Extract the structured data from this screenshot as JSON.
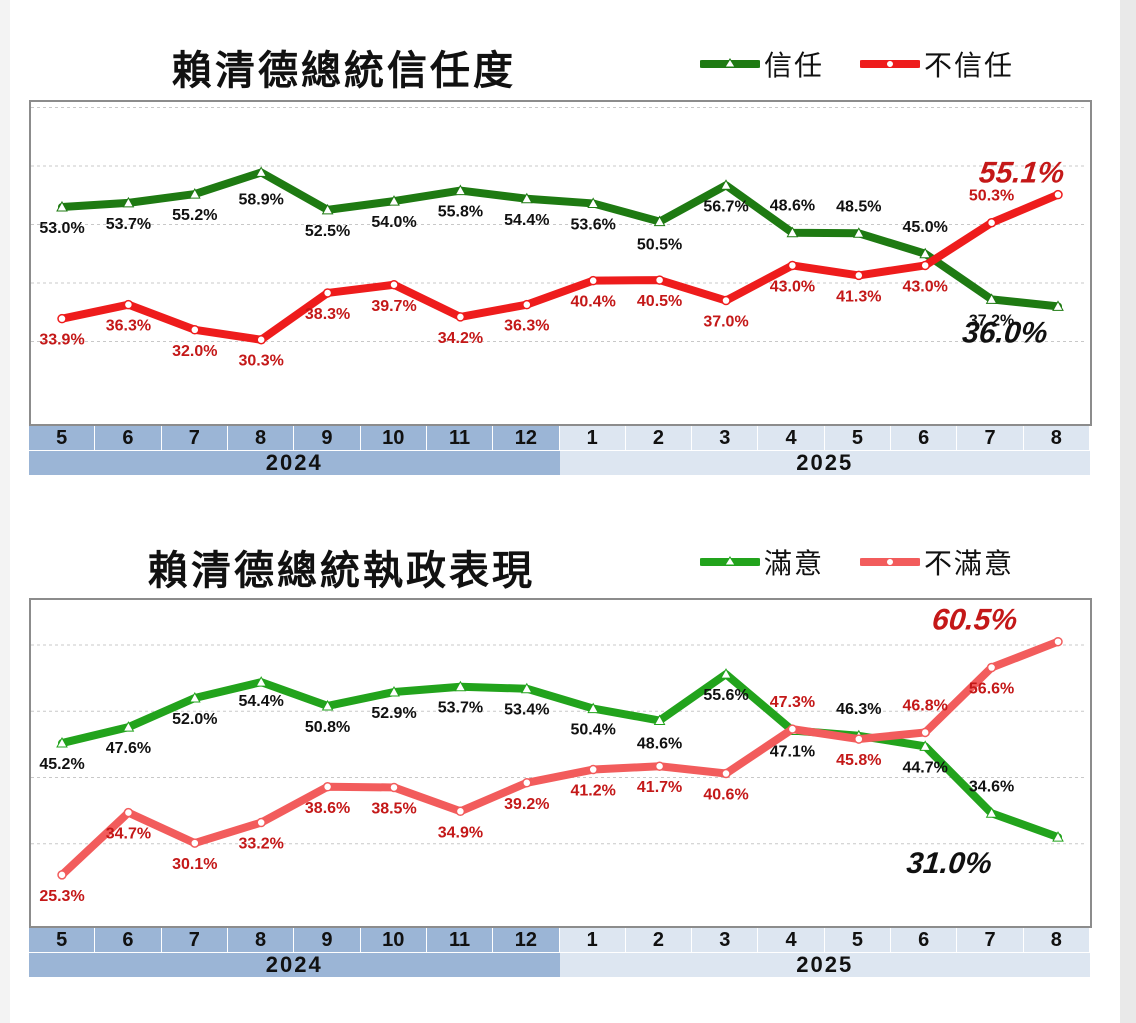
{
  "months": [
    "5",
    "6",
    "7",
    "8",
    "9",
    "10",
    "11",
    "12",
    "1",
    "2",
    "3",
    "4",
    "5",
    "6",
    "7",
    "8"
  ],
  "years": [
    "2024",
    "2025"
  ],
  "chart_data": [
    {
      "type": "line",
      "title": "賴清德總統信任度",
      "categories": [
        "5",
        "6",
        "7",
        "8",
        "9",
        "10",
        "11",
        "12",
        "1",
        "2",
        "3",
        "4",
        "5",
        "6",
        "7",
        "8"
      ],
      "x_groups": [
        {
          "label": "2024",
          "count": 8
        },
        {
          "label": "2025",
          "count": 8
        }
      ],
      "ylim": [
        20,
        70
      ],
      "series": [
        {
          "name": "信任",
          "color": "#1e7a12",
          "marker": "triangle",
          "values": [
            53.0,
            53.7,
            55.2,
            58.9,
            52.5,
            54.0,
            55.8,
            54.4,
            53.6,
            50.5,
            56.7,
            48.6,
            48.5,
            45.0,
            37.2,
            36.0
          ],
          "labels": [
            "53.0%",
            "53.7%",
            "55.2%",
            "58.9%",
            "52.5%",
            "54.0%",
            "55.8%",
            "54.4%",
            "53.6%",
            "50.5%",
            "56.7%",
            "48.6%",
            "48.5%",
            "45.0%",
            "37.2%",
            "36.0%"
          ]
        },
        {
          "name": "不信任",
          "color": "#ee1c1c",
          "marker": "circle",
          "values": [
            33.9,
            36.3,
            32.0,
            30.3,
            38.3,
            39.7,
            34.2,
            36.3,
            40.4,
            40.5,
            37.0,
            43.0,
            41.3,
            43.0,
            50.3,
            55.1
          ],
          "labels": [
            "33.9%",
            "36.3%",
            "32.0%",
            "30.3%",
            "38.3%",
            "39.7%",
            "34.2%",
            "36.3%",
            "40.4%",
            "40.5%",
            "37.0%",
            "43.0%",
            "41.3%",
            "43.0%",
            "50.3%",
            "55.1%"
          ]
        }
      ]
    },
    {
      "type": "line",
      "title": "賴清德總統執政表現",
      "categories": [
        "5",
        "6",
        "7",
        "8",
        "9",
        "10",
        "11",
        "12",
        "1",
        "2",
        "3",
        "4",
        "5",
        "6",
        "7",
        "8"
      ],
      "x_groups": [
        {
          "label": "2024",
          "count": 8
        },
        {
          "label": "2025",
          "count": 8
        }
      ],
      "ylim": [
        20,
        70
      ],
      "series": [
        {
          "name": "滿意",
          "color": "#22a31c",
          "marker": "triangle",
          "values": [
            45.2,
            47.6,
            52.0,
            54.4,
            50.8,
            52.9,
            53.7,
            53.4,
            50.4,
            48.6,
            55.6,
            47.1,
            46.3,
            44.7,
            34.6,
            31.0
          ],
          "labels": [
            "45.2%",
            "47.6%",
            "52.0%",
            "54.4%",
            "50.8%",
            "52.9%",
            "53.7%",
            "53.4%",
            "50.4%",
            "48.6%",
            "55.6%",
            "47.1%",
            "46.3%",
            "44.7%",
            "34.6%",
            "31.0%"
          ]
        },
        {
          "name": "不滿意",
          "color": "#f25c5c",
          "marker": "circle",
          "values": [
            25.3,
            34.7,
            30.1,
            33.2,
            38.6,
            38.5,
            34.9,
            39.2,
            41.2,
            41.7,
            40.6,
            47.3,
            45.8,
            46.8,
            56.6,
            60.5
          ],
          "labels": [
            "25.3%",
            "34.7%",
            "30.1%",
            "33.2%",
            "38.6%",
            "38.5%",
            "34.9%",
            "39.2%",
            "41.2%",
            "41.7%",
            "40.6%",
            "47.3%",
            "45.8%",
            "46.8%",
            "56.6%",
            "60.5%"
          ]
        }
      ]
    }
  ]
}
